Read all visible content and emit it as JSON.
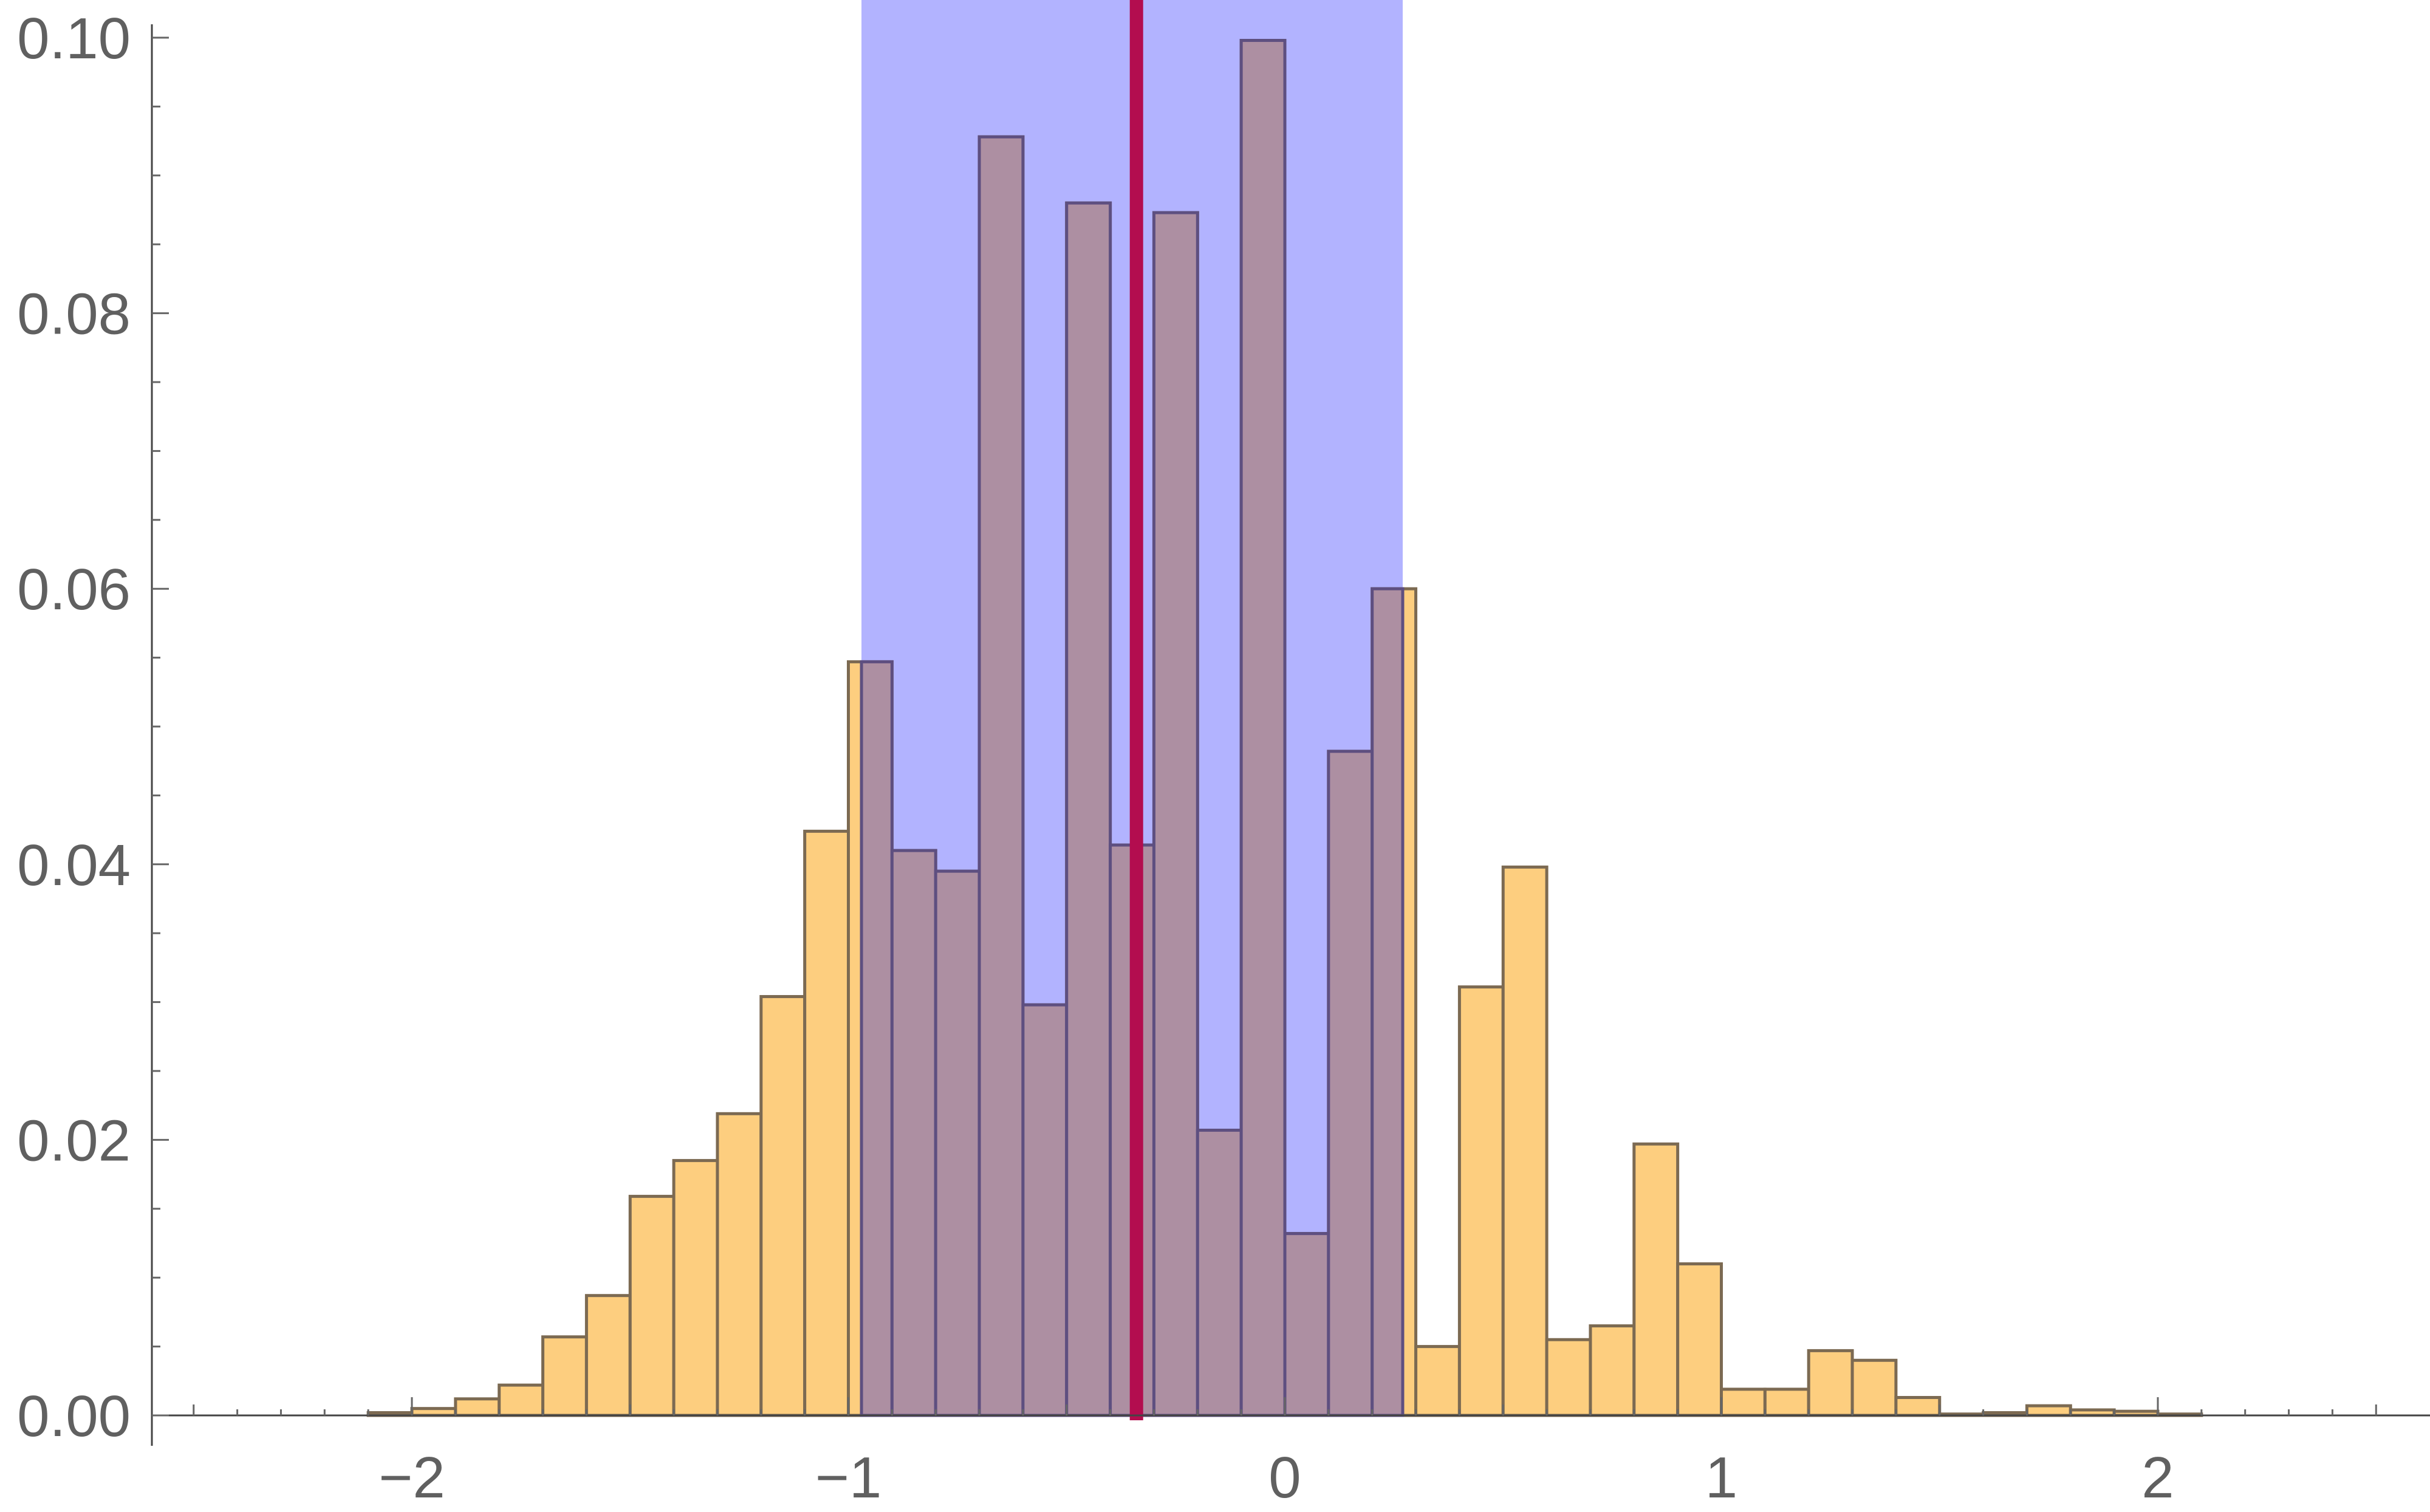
{
  "chart_data": {
    "type": "bar",
    "title": "",
    "xlabel": "",
    "ylabel": "",
    "xlim": [
      -2.6,
      2.6
    ],
    "ylim": [
      0,
      0.1
    ],
    "bin_width": 0.1,
    "x_ticks": [
      {
        "value": -2,
        "label": "−2"
      },
      {
        "value": -1,
        "label": "−1"
      },
      {
        "value": 0,
        "label": "0"
      },
      {
        "value": 1,
        "label": "1"
      },
      {
        "value": 2,
        "label": "2"
      }
    ],
    "y_ticks": [
      {
        "value": 0,
        "label": "0.00"
      },
      {
        "value": 0.02,
        "label": "0.02"
      },
      {
        "value": 0.04,
        "label": "0.04"
      },
      {
        "value": 0.06,
        "label": "0.06"
      },
      {
        "value": 0.08,
        "label": "0.08"
      },
      {
        "value": 0.1,
        "label": "0.10"
      }
    ],
    "bins": [
      {
        "start": -2.2,
        "value": 0.0
      },
      {
        "start": -2.1,
        "value": 0.0002
      },
      {
        "start": -2.0,
        "value": 0.0005
      },
      {
        "start": -1.9,
        "value": 0.0012
      },
      {
        "start": -1.8,
        "value": 0.0022
      },
      {
        "start": -1.7,
        "value": 0.0057
      },
      {
        "start": -1.6,
        "value": 0.0087
      },
      {
        "start": -1.5,
        "value": 0.0159
      },
      {
        "start": -1.4,
        "value": 0.0185
      },
      {
        "start": -1.3,
        "value": 0.0219
      },
      {
        "start": -1.2,
        "value": 0.0304
      },
      {
        "start": -1.1,
        "value": 0.0424
      },
      {
        "start": -1.0,
        "value": 0.0547
      },
      {
        "start": -0.9,
        "value": 0.041
      },
      {
        "start": -0.8,
        "value": 0.0395
      },
      {
        "start": -0.7,
        "value": 0.0928
      },
      {
        "start": -0.6,
        "value": 0.0298
      },
      {
        "start": -0.5,
        "value": 0.088
      },
      {
        "start": -0.4,
        "value": 0.0414
      },
      {
        "start": -0.3,
        "value": 0.0873
      },
      {
        "start": -0.2,
        "value": 0.0207
      },
      {
        "start": -0.1,
        "value": 0.0998
      },
      {
        "start": 0.0,
        "value": 0.0132
      },
      {
        "start": 0.1,
        "value": 0.0482
      },
      {
        "start": 0.2,
        "value": 0.06
      },
      {
        "start": 0.3,
        "value": 0.005
      },
      {
        "start": 0.4,
        "value": 0.0311
      },
      {
        "start": 0.5,
        "value": 0.0398
      },
      {
        "start": 0.6,
        "value": 0.0055
      },
      {
        "start": 0.7,
        "value": 0.0065
      },
      {
        "start": 0.8,
        "value": 0.0197
      },
      {
        "start": 0.9,
        "value": 0.011
      },
      {
        "start": 1.0,
        "value": 0.0019
      },
      {
        "start": 1.1,
        "value": 0.0019
      },
      {
        "start": 1.2,
        "value": 0.0047
      },
      {
        "start": 1.3,
        "value": 0.004
      },
      {
        "start": 1.4,
        "value": 0.0013
      },
      {
        "start": 1.5,
        "value": 0.0001
      },
      {
        "start": 1.6,
        "value": 0.0002
      },
      {
        "start": 1.7,
        "value": 0.0007
      },
      {
        "start": 1.8,
        "value": 0.0004
      },
      {
        "start": 1.9,
        "value": 0.0003
      },
      {
        "start": 2.0,
        "value": 0.0001
      },
      {
        "start": 2.1,
        "value": 0.0
      },
      {
        "start": 2.2,
        "value": 0.0
      },
      {
        "start": 2.3,
        "value": 0.0
      },
      {
        "start": 2.4,
        "value": 0.0
      }
    ],
    "highlight_band": {
      "x_start": -0.97,
      "x_end": 0.27,
      "color": "#b2b3ff"
    },
    "reference_line": {
      "x": -0.34,
      "color": "#b30d4f"
    },
    "bar_color": "#fdce7f",
    "bar_edge_color": "#7c6a52",
    "overlap_color": "#ad8fa2",
    "grid": false
  }
}
